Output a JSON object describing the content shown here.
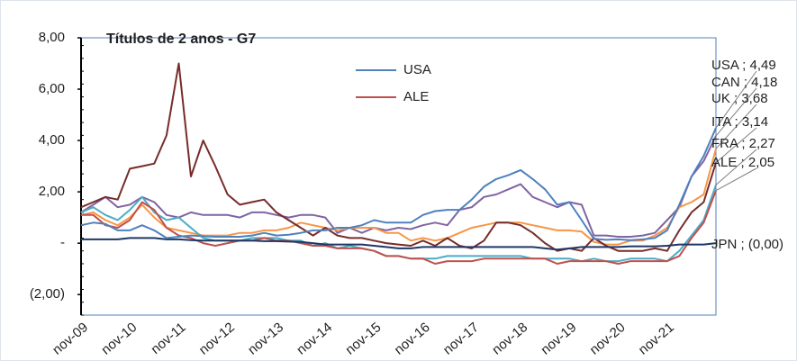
{
  "chart_data": {
    "type": "line",
    "title": "Títulos de 2 anos - G7",
    "categories": [
      "nov-09",
      null,
      null,
      null,
      "nov-10",
      null,
      null,
      null,
      "nov-11",
      null,
      null,
      null,
      "nov-12",
      null,
      null,
      null,
      "nov-13",
      null,
      null,
      null,
      "nov-14",
      null,
      null,
      null,
      "nov-15",
      null,
      null,
      null,
      "nov-16",
      null,
      null,
      null,
      "nov-17",
      null,
      null,
      null,
      "nov-18",
      null,
      null,
      null,
      "nov-19",
      null,
      null,
      null,
      "nov-20",
      null,
      null,
      null,
      "nov-21",
      null,
      null,
      null,
      null
    ],
    "ylim": [
      -2.8,
      8
    ],
    "yticks": [
      {
        "value": -2,
        "label": "(2,00)"
      },
      {
        "value": 0,
        "label": "-"
      },
      {
        "value": 2,
        "label": "2,00"
      },
      {
        "value": 4,
        "label": "4,00"
      },
      {
        "value": 6,
        "label": "6,00"
      },
      {
        "value": 8,
        "label": "8,00"
      }
    ],
    "grid": false,
    "series": [
      {
        "name": "USA",
        "color": "#4f81bd",
        "legend": true,
        "values": [
          0.7,
          0.8,
          0.75,
          0.5,
          0.5,
          0.7,
          0.5,
          0.2,
          0.25,
          0.3,
          0.27,
          0.25,
          0.25,
          0.25,
          0.3,
          0.4,
          0.3,
          0.33,
          0.4,
          0.5,
          0.5,
          0.6,
          0.6,
          0.7,
          0.9,
          0.8,
          0.8,
          0.8,
          1.1,
          1.25,
          1.3,
          1.3,
          1.7,
          2.2,
          2.5,
          2.65,
          2.85,
          2.5,
          2.1,
          1.5,
          1.6,
          0.9,
          0.17,
          0.13,
          0.15,
          0.12,
          0.15,
          0.2,
          0.5,
          1.5,
          2.6,
          3.4,
          4.49
        ]
      },
      {
        "name": "CAN",
        "color": "#8064a2",
        "legend": false,
        "values": [
          1.2,
          1.5,
          1.8,
          1.4,
          1.5,
          1.8,
          1.6,
          1.1,
          1.0,
          1.2,
          1.1,
          1.1,
          1.1,
          1.0,
          1.2,
          1.2,
          1.1,
          1.0,
          1.1,
          1.1,
          1.0,
          0.4,
          0.6,
          0.4,
          0.6,
          0.5,
          0.6,
          0.55,
          0.7,
          0.8,
          0.7,
          1.3,
          1.4,
          1.8,
          1.9,
          2.1,
          2.3,
          1.8,
          1.6,
          1.4,
          1.6,
          1.5,
          0.3,
          0.3,
          0.25,
          0.25,
          0.3,
          0.4,
          0.9,
          1.4,
          2.6,
          3.2,
          4.18
        ]
      },
      {
        "name": "UK",
        "color": "#f79646",
        "legend": false,
        "values": [
          1.1,
          1.2,
          0.9,
          0.7,
          1.0,
          1.5,
          1.0,
          0.6,
          0.5,
          0.4,
          0.3,
          0.3,
          0.3,
          0.4,
          0.4,
          0.5,
          0.5,
          0.6,
          0.8,
          0.7,
          0.6,
          0.5,
          0.6,
          0.6,
          0.6,
          0.4,
          0.4,
          0.1,
          0.2,
          0.1,
          0.2,
          0.4,
          0.6,
          0.7,
          0.8,
          0.8,
          0.8,
          0.7,
          0.6,
          0.5,
          0.5,
          0.45,
          0.05,
          -0.05,
          -0.05,
          0.1,
          0.1,
          0.3,
          0.6,
          1.4,
          1.6,
          1.9,
          3.68
        ]
      },
      {
        "name": "ITA",
        "color": "#772c2a",
        "legend": false,
        "values": [
          1.4,
          1.6,
          1.8,
          1.7,
          2.9,
          3.0,
          3.1,
          4.2,
          7.0,
          2.6,
          4.0,
          3.0,
          1.9,
          1.5,
          1.6,
          1.7,
          1.2,
          0.9,
          0.6,
          0.3,
          0.6,
          0.3,
          0.2,
          0.2,
          0.1,
          0.0,
          -0.05,
          -0.1,
          0.1,
          -0.1,
          0.2,
          -0.1,
          -0.2,
          0.1,
          0.8,
          0.8,
          0.7,
          0.4,
          0.0,
          -0.3,
          -0.2,
          -0.3,
          0.2,
          -0.1,
          -0.3,
          -0.3,
          -0.3,
          -0.2,
          -0.3,
          0.5,
          1.2,
          1.6,
          3.14
        ]
      },
      {
        "name": "FRA",
        "color": "#4bacc6",
        "legend": false,
        "values": [
          1.2,
          1.4,
          1.1,
          0.9,
          1.3,
          1.8,
          1.2,
          0.9,
          1.0,
          0.6,
          0.2,
          0.1,
          0.1,
          0.1,
          0.2,
          0.2,
          0.2,
          0.1,
          0.1,
          -0.1,
          0.0,
          -0.2,
          -0.1,
          -0.2,
          -0.3,
          -0.5,
          -0.5,
          -0.6,
          -0.6,
          -0.6,
          -0.5,
          -0.5,
          -0.5,
          -0.5,
          -0.5,
          -0.5,
          -0.5,
          -0.6,
          -0.6,
          -0.6,
          -0.6,
          -0.7,
          -0.6,
          -0.7,
          -0.7,
          -0.6,
          -0.6,
          -0.6,
          -0.7,
          -0.3,
          0.3,
          0.9,
          2.27
        ]
      },
      {
        "name": "ALE",
        "color": "#c0504d",
        "legend": true,
        "values": [
          1.1,
          1.1,
          0.7,
          0.6,
          0.9,
          1.6,
          1.3,
          0.6,
          0.3,
          0.2,
          0.0,
          -0.1,
          0.0,
          0.1,
          0.1,
          0.2,
          0.1,
          0.1,
          0.0,
          -0.1,
          -0.1,
          -0.2,
          -0.2,
          -0.2,
          -0.3,
          -0.5,
          -0.5,
          -0.6,
          -0.6,
          -0.8,
          -0.7,
          -0.7,
          -0.7,
          -0.6,
          -0.6,
          -0.6,
          -0.6,
          -0.6,
          -0.6,
          -0.8,
          -0.7,
          -0.7,
          -0.7,
          -0.7,
          -0.8,
          -0.7,
          -0.7,
          -0.7,
          -0.7,
          -0.5,
          0.2,
          0.8,
          2.05
        ]
      },
      {
        "name": "JPN",
        "color": "#1f3864",
        "legend": false,
        "values": [
          0.15,
          0.15,
          0.15,
          0.15,
          0.2,
          0.2,
          0.2,
          0.15,
          0.15,
          0.12,
          0.1,
          0.1,
          0.1,
          0.1,
          0.1,
          0.08,
          0.08,
          0.06,
          0.05,
          0.0,
          -0.05,
          -0.05,
          -0.05,
          -0.05,
          -0.1,
          -0.15,
          -0.2,
          -0.2,
          -0.15,
          -0.15,
          -0.15,
          -0.15,
          -0.15,
          -0.15,
          -0.15,
          -0.15,
          -0.15,
          -0.15,
          -0.2,
          -0.25,
          -0.2,
          -0.15,
          -0.15,
          -0.15,
          -0.15,
          -0.12,
          -0.12,
          -0.12,
          -0.1,
          -0.05,
          -0.05,
          -0.05,
          0.0
        ]
      }
    ],
    "annotations": [
      "USA  ;  4,49",
      "CAN  ;  4,18",
      "UK  ;  3,68",
      "ITA  ;  3,14",
      "FRA  ;  2,27",
      "ALE  ;  2,05",
      "JPN  ;  (0,00)"
    ]
  }
}
